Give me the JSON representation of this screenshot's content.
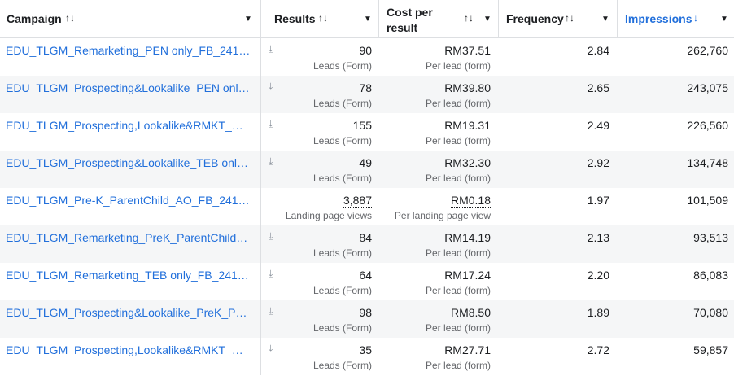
{
  "header": {
    "campaign": "Campaign",
    "results": "Results",
    "cost_per_result": "Cost per result",
    "frequency": "Frequency",
    "impressions": "Impressions"
  },
  "table": {
    "rows": [
      {
        "campaign": "EDU_TLGM_Remarketing_PEN only_FB_241…",
        "results": "90",
        "results_label": "Leads (Form)",
        "cost": "RM37.51",
        "cost_label": "Per lead (form)",
        "frequency": "2.84",
        "impressions": "262,760"
      },
      {
        "campaign": "EDU_TLGM_Prospecting&Lookalike_PEN onl…",
        "results": "78",
        "results_label": "Leads (Form)",
        "cost": "RM39.80",
        "cost_label": "Per lead (form)",
        "frequency": "2.65",
        "impressions": "243,075"
      },
      {
        "campaign": "EDU_TLGM_Prospecting,Lookalike&RMKT_…",
        "results": "155",
        "results_label": "Leads (Form)",
        "cost": "RM19.31",
        "cost_label": "Per lead (form)",
        "frequency": "2.49",
        "impressions": "226,560"
      },
      {
        "campaign": "EDU_TLGM_Prospecting&Lookalike_TEB onl…",
        "results": "49",
        "results_label": "Leads (Form)",
        "cost": "RM32.30",
        "cost_label": "Per lead (form)",
        "frequency": "2.92",
        "impressions": "134,748"
      },
      {
        "campaign": "EDU_TLGM_Pre-K_ParentChild_AO_FB_241…",
        "results": "3,887",
        "results_label": "Landing page views",
        "cost": "RM0.18",
        "cost_label": "Per landing page view",
        "frequency": "1.97",
        "impressions": "101,509"
      },
      {
        "campaign": "EDU_TLGM_Remarketing_PreK_ParentChild…",
        "results": "84",
        "results_label": "Leads (Form)",
        "cost": "RM14.19",
        "cost_label": "Per lead (form)",
        "frequency": "2.13",
        "impressions": "93,513"
      },
      {
        "campaign": "EDU_TLGM_Remarketing_TEB only_FB_241…",
        "results": "64",
        "results_label": "Leads (Form)",
        "cost": "RM17.24",
        "cost_label": "Per lead (form)",
        "frequency": "2.20",
        "impressions": "86,083"
      },
      {
        "campaign": "EDU_TLGM_Prospecting&Lookalike_PreK_P…",
        "results": "98",
        "results_label": "Leads (Form)",
        "cost": "RM8.50",
        "cost_label": "Per lead (form)",
        "frequency": "1.89",
        "impressions": "70,080"
      },
      {
        "campaign": "EDU_TLGM_Prospecting,Lookalike&RMKT_…",
        "results": "35",
        "results_label": "Leads (Form)",
        "cost": "RM27.71",
        "cost_label": "Per lead (form)",
        "frequency": "2.72",
        "impressions": "59,857"
      }
    ]
  }
}
